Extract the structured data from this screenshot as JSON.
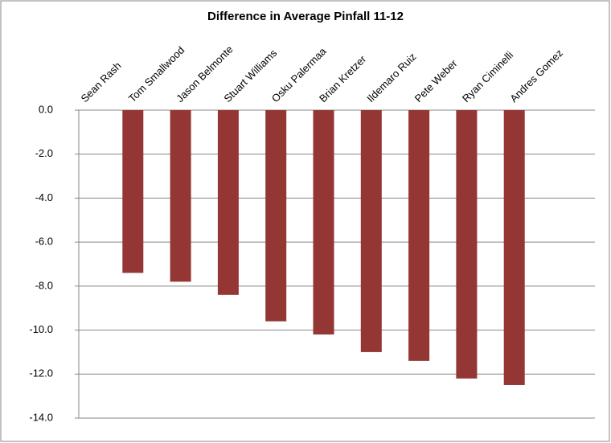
{
  "chart_data": {
    "type": "bar",
    "title": "Difference in Average Pinfall 11-12",
    "categories": [
      "Sean Rash",
      "Tom Smallwood",
      "Jason Belmonte",
      "Stuart Williams",
      "Osku Palermaa",
      "Brian Kretzer",
      "Ildemaro Ruiz",
      "Pete Weber",
      "Ryan Ciminelli",
      "Andres Gomez"
    ],
    "values": [
      0,
      -7.4,
      -7.8,
      -8.4,
      -9.6,
      -10.2,
      -11.0,
      -11.4,
      -12.2,
      -12.5
    ],
    "color": "#943634",
    "ylim": [
      -14,
      0
    ],
    "yticks": [
      {
        "value": 0,
        "label": "0.0"
      },
      {
        "value": -2,
        "label": "-2.0"
      },
      {
        "value": -4,
        "label": "-4.0"
      },
      {
        "value": -6,
        "label": "-6.0"
      },
      {
        "value": -8,
        "label": "-8.0"
      },
      {
        "value": -10,
        "label": "-10.0"
      },
      {
        "value": -12,
        "label": "-12.0"
      },
      {
        "value": -14,
        "label": "-14.0"
      }
    ],
    "grid": true
  }
}
